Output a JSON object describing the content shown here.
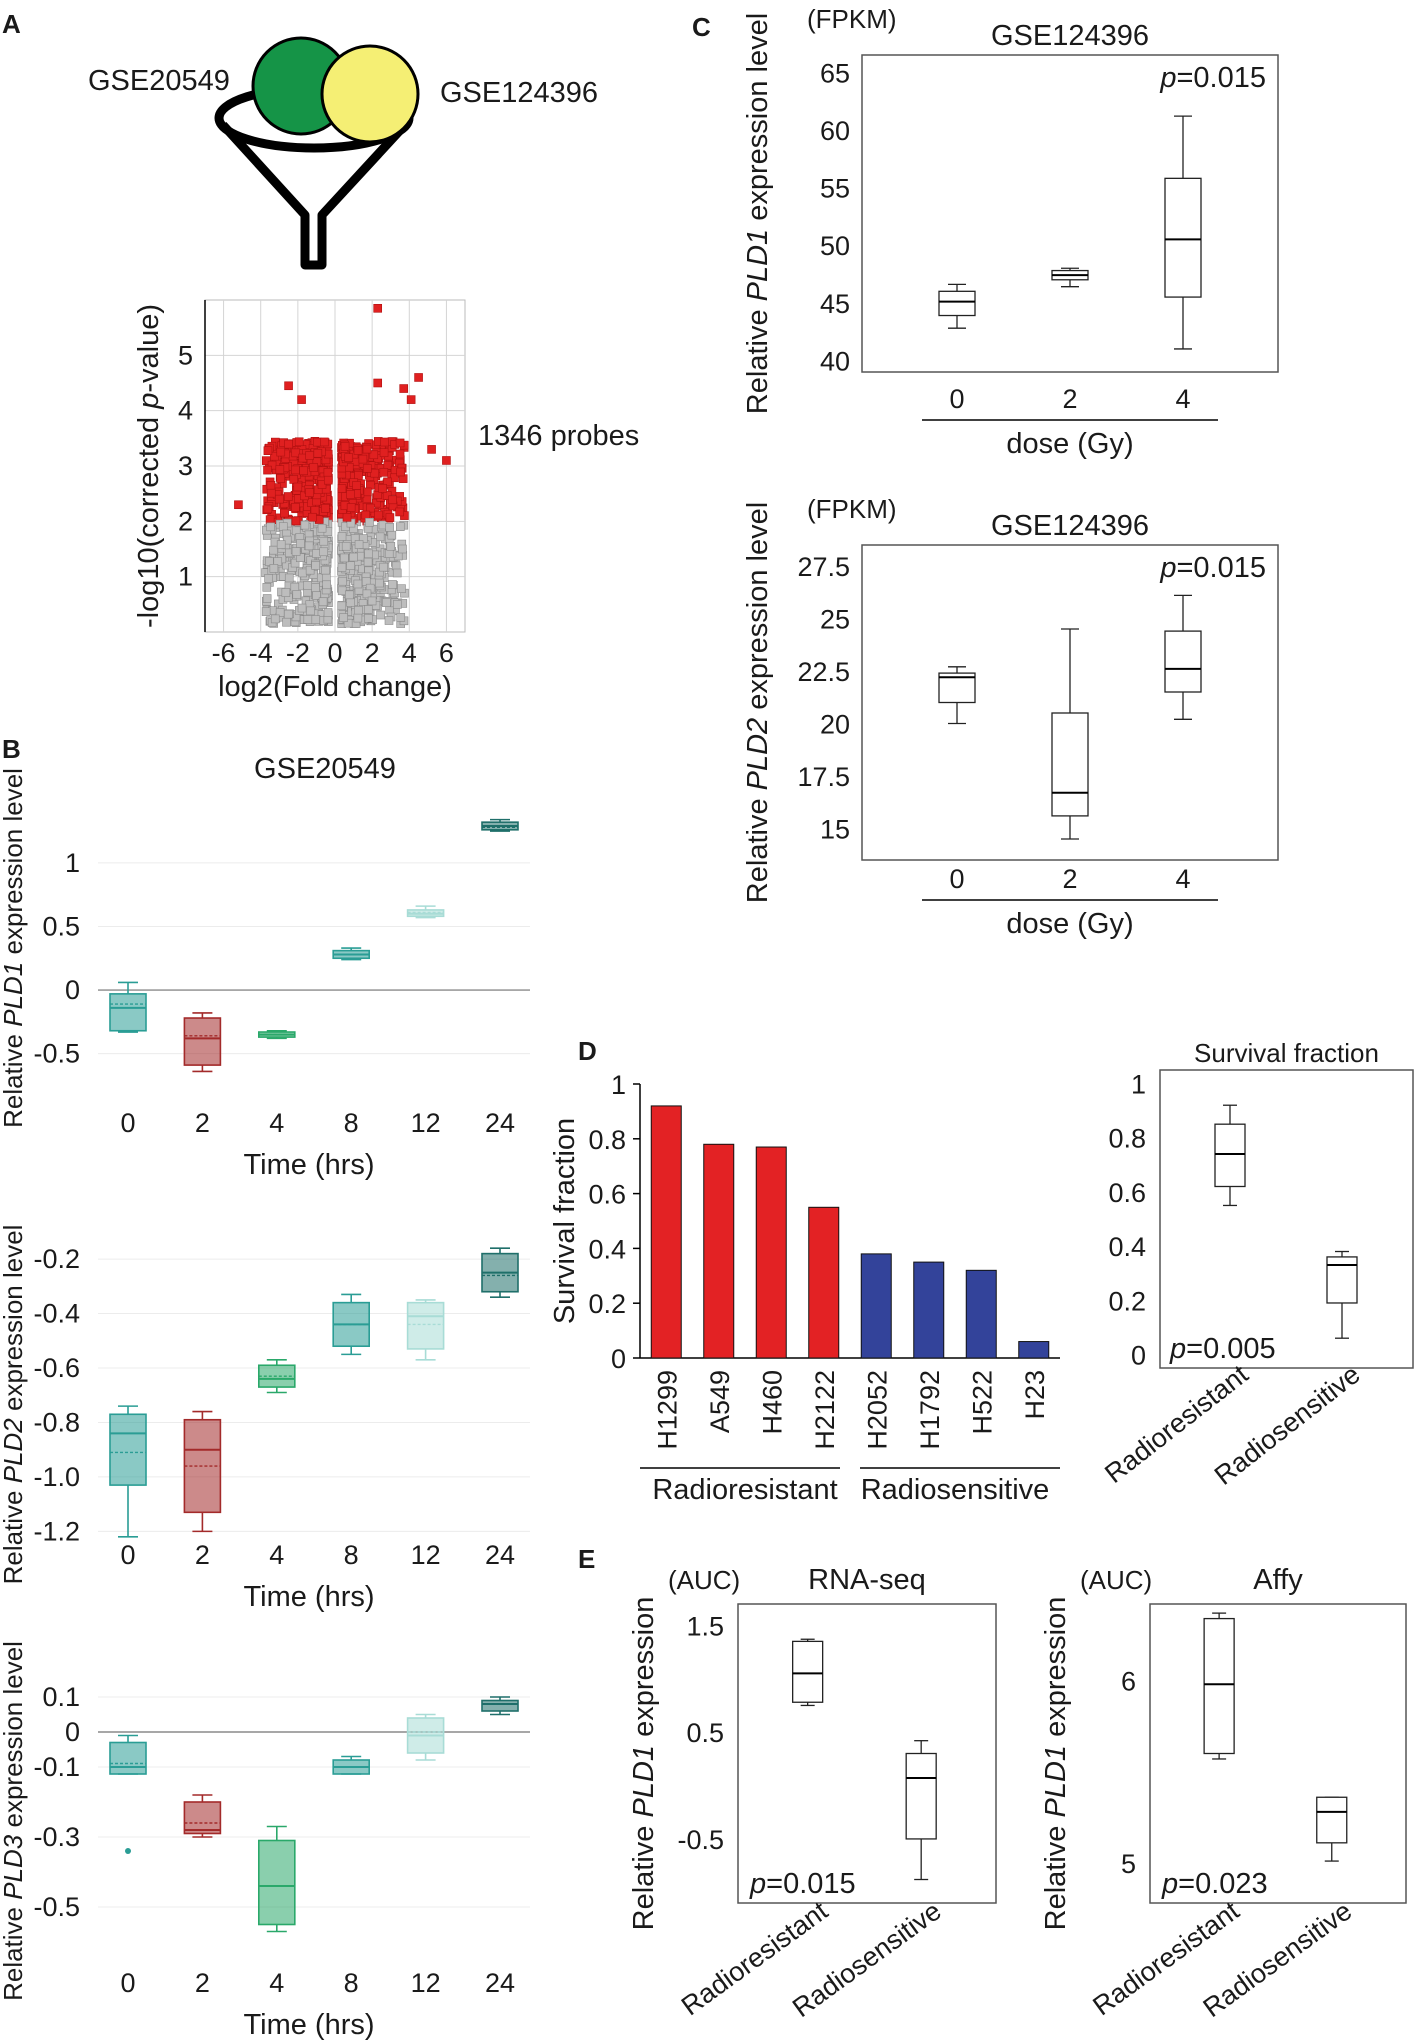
{
  "panel_labels": {
    "A": "A",
    "B": "B",
    "C": "C",
    "D": "D",
    "E": "E"
  },
  "colors": {
    "teal": "#2a9d95",
    "red": "#a32a2a",
    "green": "#2aa86a",
    "light_teal": "#a8dcd6",
    "dark_teal": "#1f6f6a",
    "bar_red": "#e32224",
    "bar_blue": "#33439a",
    "gse20549_circle": "#159447",
    "gse124396_circle": "#f5ef74"
  },
  "panelA": {
    "label_left": "GSE20549",
    "label_right": "GSE124396",
    "probes_label": "1346 probes",
    "chart_data": {
      "type": "scatter",
      "title": "",
      "xlabel": "log2(Fold change)",
      "ylabel_parts": [
        "-log10(corrected ",
        "p",
        "-value)"
      ],
      "xticks": [
        "-6",
        "-4",
        "-2",
        "0",
        "2",
        "4",
        "6"
      ],
      "yticks": [
        "1",
        "2",
        "3",
        "4",
        "5"
      ],
      "xlim": [
        -7,
        7
      ],
      "ylim": [
        0,
        6
      ],
      "significance_threshold": 2.0,
      "significant_count": 1346
    }
  },
  "panelB": {
    "title": "GSE20549",
    "xlabel": "Time (hrs)",
    "categories": [
      "0",
      "2",
      "4",
      "8",
      "12",
      "24"
    ],
    "charts": [
      {
        "type": "box",
        "ylabel": [
          "Relative ",
          "PLD1",
          " expression level"
        ],
        "yticks": [
          1,
          0.5,
          0,
          -0.5
        ],
        "ytick_labels": [
          "1",
          "0.5",
          "0",
          "-0.5"
        ],
        "ylim": [
          -0.55,
          1.4
        ],
        "boxes": [
          {
            "time": "0",
            "min": -0.33,
            "q1": -0.32,
            "median": -0.14,
            "mean": -0.11,
            "q3": -0.03,
            "max": 0.06,
            "color": "teal"
          },
          {
            "time": "2",
            "min": -0.64,
            "q1": -0.59,
            "median": -0.38,
            "mean": -0.36,
            "q3": -0.22,
            "max": -0.18,
            "color": "red"
          },
          {
            "time": "4",
            "min": -0.38,
            "q1": -0.37,
            "median": -0.35,
            "mean": -0.35,
            "q3": -0.33,
            "max": -0.32,
            "color": "green"
          },
          {
            "time": "8",
            "min": 0.24,
            "q1": 0.25,
            "median": 0.28,
            "mean": 0.28,
            "q3": 0.31,
            "max": 0.33,
            "color": "teal"
          },
          {
            "time": "12",
            "min": 0.57,
            "q1": 0.58,
            "median": 0.6,
            "mean": 0.61,
            "q3": 0.63,
            "max": 0.66,
            "color": "light_teal"
          },
          {
            "time": "24",
            "min": 1.25,
            "q1": 1.26,
            "median": 1.29,
            "mean": 1.28,
            "q3": 1.32,
            "max": 1.34,
            "color": "dark_teal"
          }
        ]
      },
      {
        "type": "box",
        "ylabel": [
          "Relative ",
          "PLD2",
          " expression level"
        ],
        "yticks": [
          -0.2,
          -0.4,
          -0.6,
          -0.8,
          -1.0,
          -1.2
        ],
        "ytick_labels": [
          "-0.2",
          "-0.4",
          "-0.6",
          "-0.8",
          "-1.0",
          "-1.2"
        ],
        "ylim": [
          -1.25,
          -0.13
        ],
        "boxes": [
          {
            "time": "0",
            "min": -1.22,
            "q1": -1.03,
            "median": -0.84,
            "mean": -0.91,
            "q3": -0.77,
            "max": -0.74,
            "color": "teal"
          },
          {
            "time": "2",
            "min": -1.2,
            "q1": -1.13,
            "median": -0.9,
            "mean": -0.96,
            "q3": -0.79,
            "max": -0.76,
            "color": "red"
          },
          {
            "time": "4",
            "min": -0.69,
            "q1": -0.67,
            "median": -0.64,
            "mean": -0.63,
            "q3": -0.59,
            "max": -0.57,
            "color": "green"
          },
          {
            "time": "8",
            "min": -0.55,
            "q1": -0.52,
            "median": -0.44,
            "mean": -0.44,
            "q3": -0.36,
            "max": -0.33,
            "color": "teal"
          },
          {
            "time": "12",
            "min": -0.57,
            "q1": -0.53,
            "median": -0.41,
            "mean": -0.44,
            "q3": -0.36,
            "max": -0.35,
            "color": "light_teal"
          },
          {
            "time": "24",
            "min": -0.34,
            "q1": -0.32,
            "median": -0.25,
            "mean": -0.26,
            "q3": -0.18,
            "max": -0.16,
            "color": "dark_teal"
          }
        ]
      },
      {
        "type": "box",
        "ylabel": [
          "Relative ",
          "PLD3",
          " expression level"
        ],
        "yticks": [
          0.1,
          0,
          -0.1,
          -0.3,
          -0.5
        ],
        "ytick_labels": [
          "0.1",
          "0",
          "-0.1",
          "-0.3",
          "-0.5"
        ],
        "ylim": [
          -0.58,
          0.14
        ],
        "boxes": [
          {
            "time": "0",
            "min": -0.12,
            "q1": -0.12,
            "median": -0.1,
            "mean": -0.09,
            "q3": -0.03,
            "max": -0.01,
            "outlier": -0.34,
            "color": "teal"
          },
          {
            "time": "2",
            "min": -0.3,
            "q1": -0.29,
            "median": -0.28,
            "mean": -0.26,
            "q3": -0.2,
            "max": -0.18,
            "color": "red"
          },
          {
            "time": "4",
            "min": -0.57,
            "q1": -0.55,
            "median": -0.44,
            "mean": -0.44,
            "q3": -0.31,
            "max": -0.27,
            "color": "green"
          },
          {
            "time": "8",
            "min": -0.12,
            "q1": -0.12,
            "median": -0.1,
            "mean": -0.1,
            "q3": -0.08,
            "max": -0.07,
            "color": "teal"
          },
          {
            "time": "12",
            "min": -0.08,
            "q1": -0.06,
            "median": -0.01,
            "mean": 0.0,
            "q3": 0.04,
            "max": 0.05,
            "color": "light_teal"
          },
          {
            "time": "24",
            "min": 0.05,
            "q1": 0.06,
            "median": 0.08,
            "mean": 0.08,
            "q3": 0.09,
            "max": 0.1,
            "color": "dark_teal"
          }
        ]
      }
    ]
  },
  "panelC": {
    "charts": [
      {
        "type": "box",
        "title": "GSE124396",
        "unit": "(FPKM)",
        "p_label": "p",
        "p_value": "=0.015",
        "ylabel": [
          "Relative ",
          "PLD1",
          " expression level"
        ],
        "xlabel": "dose (Gy)",
        "categories": [
          "0",
          "2",
          "4"
        ],
        "yticks": [
          40,
          45,
          50,
          55,
          60,
          65
        ],
        "ytick_labels": [
          "40",
          "45",
          "50",
          "55",
          "60",
          "65"
        ],
        "ylim": [
          39,
          66.5
        ],
        "boxes": [
          {
            "dose": "0",
            "min": 42.8,
            "q1": 43.9,
            "median": 45.1,
            "q3": 46.0,
            "max": 46.6
          },
          {
            "dose": "2",
            "min": 46.4,
            "q1": 47.0,
            "median": 47.4,
            "q3": 47.8,
            "max": 48.0
          },
          {
            "dose": "4",
            "min": 41.0,
            "q1": 45.5,
            "median": 50.5,
            "q3": 55.8,
            "max": 61.2
          }
        ]
      },
      {
        "type": "box",
        "title": "GSE124396",
        "unit": "(FPKM)",
        "p_label": "p",
        "p_value": "=0.015",
        "ylabel": [
          "Relative ",
          "PLD2",
          " expression level"
        ],
        "xlabel": "dose (Gy)",
        "categories": [
          "0",
          "2",
          "4"
        ],
        "yticks": [
          15,
          17.5,
          20,
          22.5,
          25,
          27.5
        ],
        "ytick_labels": [
          "15",
          "17.5",
          "20",
          "22.5",
          "25",
          "27.5"
        ],
        "ylim": [
          13.5,
          28.5
        ],
        "boxes": [
          {
            "dose": "0",
            "min": 20.0,
            "q1": 21.0,
            "median": 22.2,
            "q3": 22.4,
            "max": 22.7
          },
          {
            "dose": "2",
            "min": 14.5,
            "q1": 15.6,
            "median": 16.7,
            "q3": 20.5,
            "max": 24.5
          },
          {
            "dose": "4",
            "min": 20.2,
            "q1": 21.5,
            "median": 22.6,
            "q3": 24.4,
            "max": 26.1
          }
        ]
      }
    ]
  },
  "panelD": {
    "bar_chart": {
      "type": "bar",
      "ylabel": "Survival fraction",
      "categories": [
        "H1299",
        "A549",
        "H460",
        "H2122",
        "H2052",
        "H1792",
        "H522",
        "H23"
      ],
      "values": [
        0.92,
        0.78,
        0.77,
        0.55,
        0.38,
        0.35,
        0.32,
        0.06
      ],
      "groups": [
        "red",
        "red",
        "red",
        "red",
        "blue",
        "blue",
        "blue",
        "blue"
      ],
      "group_labels": [
        "Radioresistant",
        "Radiosensitive"
      ],
      "yticks": [
        0,
        0.2,
        0.4,
        0.6,
        0.8,
        1
      ],
      "ytick_labels": [
        "0",
        "0.2",
        "0.4",
        "0.6",
        "0.8",
        "1"
      ],
      "ylim": [
        0,
        1
      ]
    },
    "box_chart": {
      "type": "box",
      "title": "Survival fraction",
      "p_label": "p",
      "p_value": "=0.005",
      "categories": [
        "Radioresistant",
        "Radiosensitive"
      ],
      "yticks": [
        0,
        0.2,
        0.4,
        0.6,
        0.8,
        1
      ],
      "ytick_labels": [
        "0",
        "0.2",
        "0.4",
        "0.6",
        "0.8",
        "1"
      ],
      "ylim": [
        -0.05,
        1.05
      ],
      "boxes": [
        {
          "group": "Radioresistant",
          "min": 0.55,
          "q1": 0.62,
          "median": 0.74,
          "q3": 0.85,
          "max": 0.92
        },
        {
          "group": "Radiosensitive",
          "min": 0.06,
          "q1": 0.19,
          "median": 0.33,
          "q3": 0.36,
          "max": 0.38
        }
      ]
    }
  },
  "panelE": {
    "charts": [
      {
        "type": "box",
        "title": "RNA-seq",
        "unit": "(AUC)",
        "p_label": "p",
        "p_value": "=0.015",
        "ylabel": [
          "Relative ",
          "PLD1",
          " expression"
        ],
        "categories": [
          "Radioresistant",
          "Radiosensitive"
        ],
        "yticks": [
          1.5,
          0.5,
          -0.5
        ],
        "ytick_labels": [
          "1.5",
          "0.5",
          "-0.5"
        ],
        "ylim": [
          -1.1,
          1.7
        ],
        "boxes": [
          {
            "group": "Radioresistant",
            "min": 0.75,
            "q1": 0.78,
            "median": 1.05,
            "q3": 1.35,
            "max": 1.37
          },
          {
            "group": "Radiosensitive",
            "min": -0.88,
            "q1": -0.5,
            "median": 0.07,
            "q3": 0.3,
            "max": 0.42
          }
        ]
      },
      {
        "type": "box",
        "title": "Affy",
        "unit": "(AUC)",
        "p_label": "p",
        "p_value": "=0.023",
        "ylabel": [
          "Relative ",
          "PLD1",
          " expression"
        ],
        "categories": [
          "Radioresistant",
          "Radiosensitive"
        ],
        "yticks": [
          6,
          5
        ],
        "ytick_labels": [
          "6",
          "5"
        ],
        "ylim": [
          4.78,
          6.42
        ],
        "boxes": [
          {
            "group": "Radioresistant",
            "min": 5.57,
            "q1": 5.6,
            "median": 5.98,
            "q3": 6.34,
            "max": 6.37
          },
          {
            "group": "Radiosensitive",
            "min": 5.01,
            "q1": 5.11,
            "median": 5.28,
            "q3": 5.36,
            "max": 5.36
          }
        ]
      }
    ]
  }
}
